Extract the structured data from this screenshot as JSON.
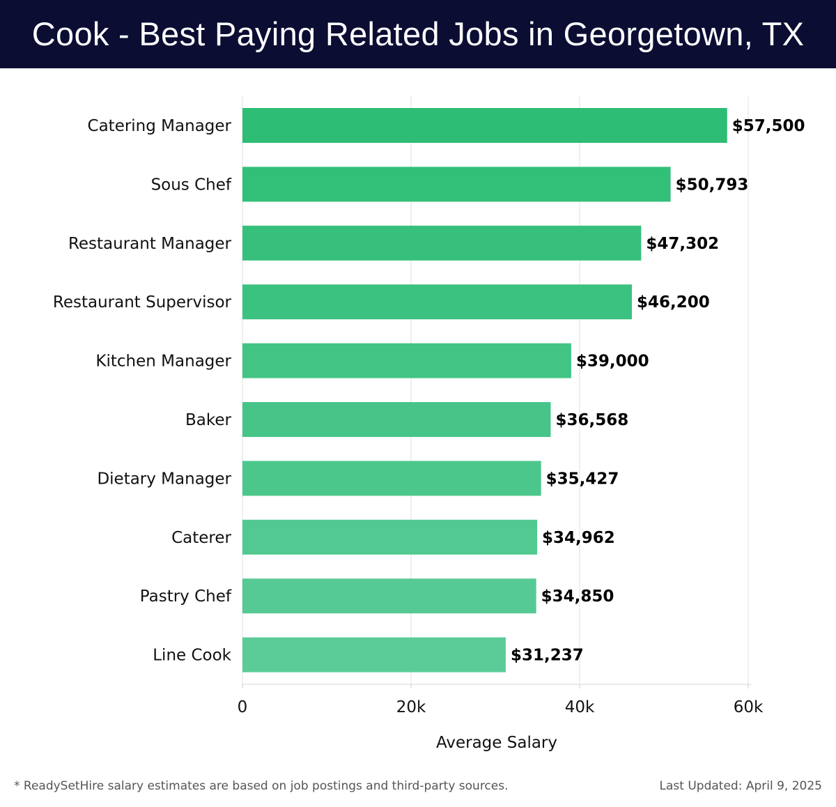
{
  "header": {
    "title": "Cook - Best Paying Related Jobs in Georgetown, TX"
  },
  "colors": {
    "header_bg": "#0b0d33",
    "bar_top": "#2dbd74",
    "bar_bottom": "#5bcc98",
    "grid": "#e0e0e0"
  },
  "chart_data": {
    "type": "bar",
    "orientation": "horizontal",
    "categories": [
      "Catering Manager",
      "Sous Chef",
      "Restaurant Manager",
      "Restaurant Supervisor",
      "Kitchen Manager",
      "Baker",
      "Dietary Manager",
      "Caterer",
      "Pastry Chef",
      "Line Cook"
    ],
    "values": [
      57500,
      50793,
      47302,
      46200,
      39000,
      36568,
      35427,
      34962,
      34850,
      31237
    ],
    "value_labels": [
      "$57,500",
      "$50,793",
      "$47,302",
      "$46,200",
      "$39,000",
      "$36,568",
      "$35,427",
      "$34,962",
      "$34,850",
      "$31,237"
    ],
    "xlabel": "Average Salary",
    "ylabel": "",
    "xlim": [
      0,
      60000
    ],
    "x_ticks": [
      0,
      20000,
      40000,
      60000
    ],
    "x_tick_labels": [
      "0",
      "20k",
      "40k",
      "60k"
    ],
    "grid": true
  },
  "footer": {
    "note": "* ReadySetHire salary estimates are based on job postings and third-party sources.",
    "updated": "Last Updated: April 9, 2025"
  }
}
